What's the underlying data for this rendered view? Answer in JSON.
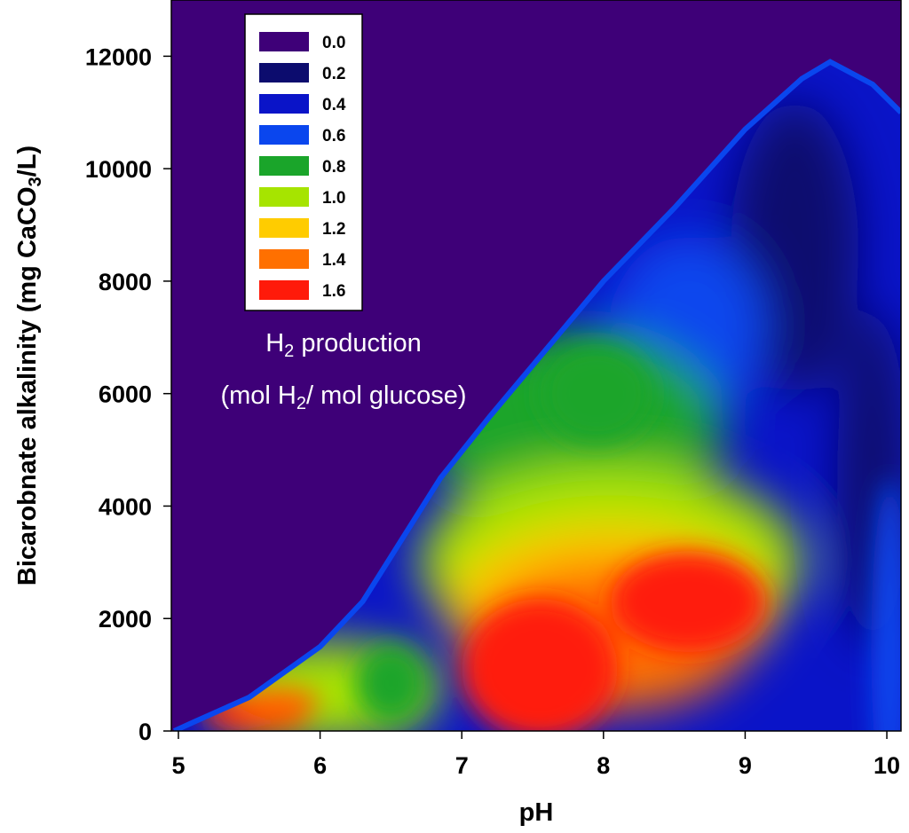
{
  "chart_data": {
    "type": "heatmap",
    "title": "",
    "xlabel": "pH",
    "ylabel_main": "Bicarobnate alkalinity (mg CaCO",
    "ylabel_sub": "3",
    "ylabel_end": "/L)",
    "xlim": [
      4.95,
      10.1
    ],
    "ylim": [
      0,
      13000
    ],
    "xticks": [
      5,
      6,
      7,
      8,
      9,
      10
    ],
    "xtick_labels": [
      "5",
      "6",
      "7",
      "8",
      "9",
      "10"
    ],
    "yticks": [
      0,
      2000,
      4000,
      6000,
      8000,
      10000,
      12000
    ],
    "ytick_labels": [
      "0",
      "2000",
      "4000",
      "6000",
      "8000",
      "10000",
      "12000"
    ],
    "colorscale": {
      "levels": [
        0.0,
        0.2,
        0.4,
        0.6,
        0.8,
        1.0,
        1.2,
        1.4,
        1.6
      ],
      "labels": [
        "0.0",
        "0.2",
        "0.4",
        "0.6",
        "0.8",
        "1.0",
        "1.2",
        "1.4",
        "1.6"
      ],
      "colors": [
        "#3e0078",
        "#0c0c6e",
        "#0a14c8",
        "#0a46ee",
        "#1aa52a",
        "#a6e400",
        "#ffcc00",
        "#ff7000",
        "#ff1a0a"
      ]
    },
    "annotation": {
      "line1_main": "H",
      "line1_sub": "2",
      "line1_end": " production",
      "line2_start": "(mol H",
      "line2_sub": "2",
      "line2_end": "/ mol glucose)"
    },
    "regions": [
      {
        "name": "peak-high-ph",
        "pH": 8.7,
        "alkalinity": 2600,
        "value": 1.6
      },
      {
        "name": "peak-mid",
        "pH": 7.5,
        "alkalinity": 1100,
        "value": 1.6
      },
      {
        "name": "peak-low-ph",
        "pH": 5.6,
        "alkalinity": 300,
        "value": 1.6
      },
      {
        "name": "green-plateau",
        "pH": 7.9,
        "alkalinity": 6000,
        "value": 0.9
      },
      {
        "name": "green-pocket",
        "pH": 6.5,
        "alkalinity": 900,
        "value": 0.8
      }
    ]
  }
}
